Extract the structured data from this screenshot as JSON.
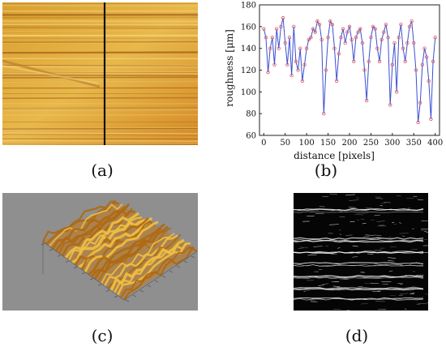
{
  "captions": {
    "a": "(a)",
    "b": "(b)",
    "c": "(c)",
    "d": "(d)"
  },
  "chart_data": {
    "type": "line",
    "xlabel": "distance [pixels]",
    "ylabel": "roughness [μm]",
    "xlim": [
      -10,
      410
    ],
    "ylim": [
      60,
      180
    ],
    "xticks": [
      0,
      50,
      100,
      150,
      200,
      250,
      300,
      350,
      400
    ],
    "yticks": [
      60,
      80,
      100,
      120,
      140,
      160,
      180
    ],
    "grid": false,
    "series": [
      {
        "line_color": "#3a4fd0",
        "marker_color": "#e05a5a",
        "marker": "open-circle",
        "x": [
          0,
          5,
          10,
          15,
          20,
          25,
          30,
          35,
          40,
          45,
          50,
          55,
          60,
          65,
          70,
          75,
          80,
          85,
          90,
          95,
          100,
          105,
          110,
          115,
          120,
          125,
          130,
          135,
          140,
          145,
          150,
          155,
          160,
          165,
          170,
          175,
          180,
          185,
          190,
          195,
          200,
          205,
          210,
          215,
          220,
          225,
          230,
          235,
          240,
          245,
          250,
          255,
          260,
          265,
          270,
          275,
          280,
          285,
          290,
          295,
          300,
          305,
          310,
          315,
          320,
          325,
          330,
          335,
          340,
          345,
          350,
          355,
          360,
          365,
          370,
          375,
          380,
          385,
          390,
          395,
          400
        ],
        "y": [
          158,
          150,
          118,
          140,
          150,
          125,
          158,
          140,
          160,
          168,
          145,
          125,
          150,
          115,
          160,
          128,
          120,
          140,
          110,
          125,
          140,
          148,
          150,
          158,
          155,
          165,
          162,
          148,
          80,
          120,
          150,
          165,
          162,
          140,
          110,
          135,
          150,
          158,
          145,
          155,
          160,
          148,
          128,
          150,
          155,
          158,
          145,
          120,
          92,
          128,
          150,
          160,
          158,
          140,
          128,
          148,
          155,
          162,
          150,
          88,
          125,
          145,
          100,
          150,
          162,
          140,
          128,
          145,
          160,
          165,
          145,
          120,
          72,
          90,
          125,
          140,
          132,
          110,
          75,
          128,
          150
        ]
      }
    ]
  }
}
